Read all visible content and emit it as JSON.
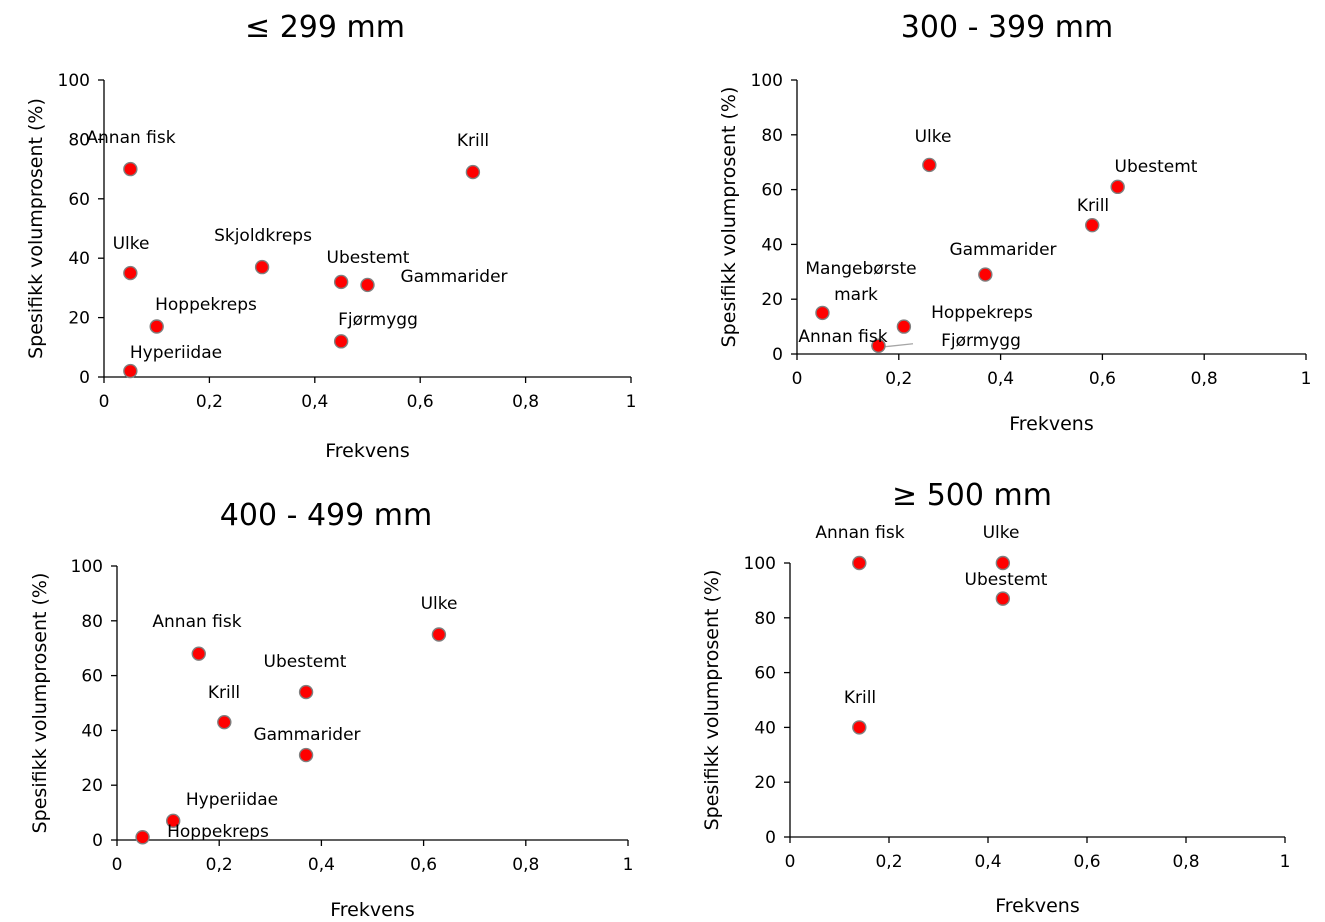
{
  "chart_data": [
    {
      "type": "scatter",
      "title": "≤ 299 mm",
      "xlabel": "Frekvens",
      "ylabel": "Spesifikk volumprosent (%)",
      "xlim": [
        0,
        1
      ],
      "ylim": [
        0,
        100
      ],
      "xticks": [
        "0",
        "0,2",
        "0,4",
        "0,6",
        "0,8",
        "1"
      ],
      "yticks": [
        "0",
        "20",
        "40",
        "60",
        "80",
        "100"
      ],
      "grid": false,
      "points": [
        {
          "label": "Annan fisk",
          "x": 0.05,
          "y": 70
        },
        {
          "label": "Krill",
          "x": 0.7,
          "y": 69
        },
        {
          "label": "Ulke",
          "x": 0.05,
          "y": 35
        },
        {
          "label": "Skjoldkreps",
          "x": 0.3,
          "y": 37
        },
        {
          "label": "Ubestemt",
          "x": 0.45,
          "y": 32
        },
        {
          "label": "Gammarider",
          "x": 0.5,
          "y": 31
        },
        {
          "label": "Hoppekreps",
          "x": 0.1,
          "y": 17
        },
        {
          "label": "Fjørmygg",
          "x": 0.45,
          "y": 12
        },
        {
          "label": "Hyperiidae",
          "x": 0.05,
          "y": 2
        }
      ]
    },
    {
      "type": "scatter",
      "title": "300 - 399 mm",
      "xlabel": "Frekvens",
      "ylabel": "Spesifikk volumprosent (%)",
      "xlim": [
        0,
        1
      ],
      "ylim": [
        0,
        100
      ],
      "xticks": [
        "0",
        "0,2",
        "0,4",
        "0,6",
        "0,8",
        "1"
      ],
      "yticks": [
        "0",
        "20",
        "40",
        "60",
        "80",
        "100"
      ],
      "grid": false,
      "points": [
        {
          "label": "Ulke",
          "x": 0.26,
          "y": 69
        },
        {
          "label": "Ubestemt",
          "x": 0.63,
          "y": 61
        },
        {
          "label": "Krill",
          "x": 0.58,
          "y": 47
        },
        {
          "label": "Gammarider",
          "x": 0.37,
          "y": 29
        },
        {
          "label": "Mangebørste mark",
          "x": 0.05,
          "y": 15
        },
        {
          "label": "Hoppekreps",
          "x": 0.21,
          "y": 10
        },
        {
          "label": "Annan fisk",
          "x": 0.16,
          "y": 3
        },
        {
          "label": "Fjørmygg",
          "x": 0.16,
          "y": 3
        }
      ]
    },
    {
      "type": "scatter",
      "title": "400 - 499 mm",
      "xlabel": "Frekvens",
      "ylabel": "Spesifikk volumprosent (%)",
      "xlim": [
        0,
        1
      ],
      "ylim": [
        0,
        100
      ],
      "xticks": [
        "0",
        "0,2",
        "0,4",
        "0,6",
        "0,8",
        "1"
      ],
      "yticks": [
        "0",
        "20",
        "40",
        "60",
        "80",
        "100"
      ],
      "grid": false,
      "points": [
        {
          "label": "Ulke",
          "x": 0.63,
          "y": 75
        },
        {
          "label": "Annan fisk",
          "x": 0.16,
          "y": 68
        },
        {
          "label": "Ubestemt",
          "x": 0.37,
          "y": 54
        },
        {
          "label": "Krill",
          "x": 0.21,
          "y": 43
        },
        {
          "label": "Gammarider",
          "x": 0.37,
          "y": 31
        },
        {
          "label": "Hyperiidae",
          "x": 0.11,
          "y": 7
        },
        {
          "label": "Hoppekreps",
          "x": 0.05,
          "y": 1
        }
      ]
    },
    {
      "type": "scatter",
      "title": "≥ 500 mm",
      "xlabel": "Frekvens",
      "ylabel": "Spesifikk volumprosent (%)",
      "xlim": [
        0,
        1
      ],
      "ylim": [
        0,
        100
      ],
      "xticks": [
        "0",
        "0,2",
        "0,4",
        "0,6",
        "0,8",
        "1"
      ],
      "yticks": [
        "0",
        "20",
        "40",
        "60",
        "80",
        "100"
      ],
      "grid": false,
      "points": [
        {
          "label": "Annan fisk",
          "x": 0.14,
          "y": 100
        },
        {
          "label": "Ulke",
          "x": 0.43,
          "y": 100
        },
        {
          "label": "Ubestemt",
          "x": 0.43,
          "y": 87
        },
        {
          "label": "Krill",
          "x": 0.14,
          "y": 40
        }
      ]
    }
  ],
  "colors": {
    "marker_fill": "#ff0000",
    "marker_stroke": "#7f7f7f",
    "axis": "#000000"
  }
}
